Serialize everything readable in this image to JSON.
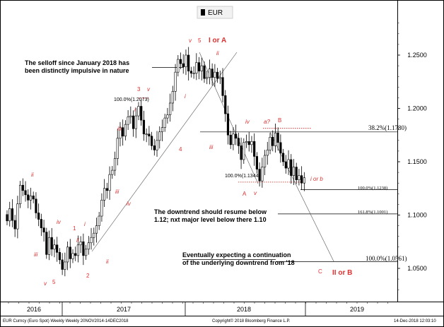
{
  "chart_data": {
    "type": "candlestick",
    "legend": [
      {
        "name": "EUR",
        "color": "#000000"
      }
    ],
    "x_ticks": [
      "2016",
      "2017",
      "2018",
      "2019"
    ],
    "y_ticks": [
      "1.0500",
      "1.1000",
      "1.1500",
      "1.2000",
      "1.2500"
    ],
    "ylim": [
      1.025,
      1.295
    ],
    "series": [
      {
        "name": "EUR",
        "closes": [
          1.0945,
          1.106,
          1.095,
          1.087,
          1.1105,
          1.128,
          1.123,
          1.119,
          1.114,
          1.118,
          1.115,
          1.102,
          1.096,
          1.088,
          1.084,
          1.063,
          1.079,
          1.068,
          1.072,
          1.065,
          1.058,
          1.049,
          1.056,
          1.07,
          1.059,
          1.064,
          1.062,
          1.072,
          1.075,
          1.062,
          1.068,
          1.074,
          1.079,
          1.083,
          1.09,
          1.099,
          1.114,
          1.125,
          1.123,
          1.138,
          1.142,
          1.153,
          1.172,
          1.182,
          1.174,
          1.185,
          1.192,
          1.193,
          1.181,
          1.193,
          1.202,
          1.189,
          1.176,
          1.176,
          1.174,
          1.165,
          1.161,
          1.17,
          1.178,
          1.182,
          1.191,
          1.194,
          1.205,
          1.216,
          1.234,
          1.246,
          1.242,
          1.239,
          1.25,
          1.235,
          1.233,
          1.233,
          1.243,
          1.235,
          1.24,
          1.228,
          1.229,
          1.237,
          1.229,
          1.234,
          1.228,
          1.229,
          1.212,
          1.195,
          1.175,
          1.166,
          1.176,
          1.172,
          1.165,
          1.152,
          1.168,
          1.169,
          1.166,
          1.169,
          1.155,
          1.143,
          1.132,
          1.145,
          1.156,
          1.161,
          1.173,
          1.165,
          1.177,
          1.168,
          1.158,
          1.15,
          1.144,
          1.152,
          1.137,
          1.145,
          1.133,
          1.137,
          1.13,
          1.135
        ]
      }
    ],
    "hlines": [
      {
        "label": "38.2%(1.1780)",
        "value": 1.178
      },
      {
        "label": "100.0%(1.1238)",
        "value": 1.1238
      },
      {
        "label": "161.8%(1.1001)",
        "value": 1.1001
      },
      {
        "label": "100.0%(1.0561)",
        "value": 1.0561
      }
    ],
    "fib_markers": [
      {
        "label": "100.0%(1.2073)",
        "value": 1.2073
      },
      {
        "label": "100.0%(1.1344)",
        "value": 1.1344
      }
    ],
    "wave_labels": [
      "ii",
      "iii",
      "iv",
      "v",
      "5",
      "1",
      "i",
      "ii",
      "2",
      "ii",
      "iii",
      "iv",
      "3",
      "v",
      "i",
      "iii",
      "4",
      "v",
      "5",
      "I or A",
      "ii",
      "i",
      "iii",
      "iv",
      "A",
      "v",
      "a?",
      "B",
      "i or b",
      "C",
      "II or B"
    ],
    "annotations": [
      "The selloff since January 2018 has\nbeen distinctly impulsive in nature",
      "The downtrend should resume below\n1.12; nxt major level below there 1.10",
      "Eventually  expecting  a continuation\nof the underlying downtrend from '18"
    ]
  },
  "footer": {
    "left": "EUR Curncy (Euro Spot) Weekly  Weekly 20NOV2014-14DEC2018",
    "center": "Copyright© 2018 Bloomberg Finance L.P.",
    "right": "14-Dec-2018 12:03:10"
  }
}
